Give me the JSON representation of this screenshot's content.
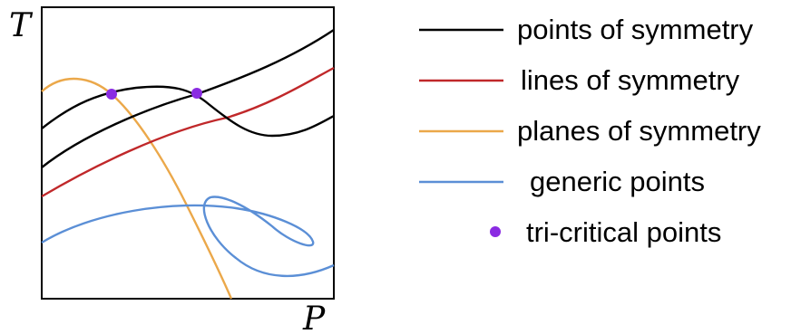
{
  "chart_data": {
    "type": "line",
    "xlabel": "P",
    "ylabel": "T",
    "grid": false,
    "legend_position": "right",
    "colors": {
      "points_of_symmetry": "#000000",
      "lines_of_symmetry": "#c0282a",
      "planes_of_symmetry": "#eba84a",
      "generic_points": "#5b8fd6",
      "tri_critical_points": "#8a2be2"
    },
    "legend": [
      {
        "key": "points_of_symmetry",
        "label": "points of symmetry",
        "marker": "line"
      },
      {
        "key": "lines_of_symmetry",
        "label": "lines of symmetry",
        "marker": "line"
      },
      {
        "key": "planes_of_symmetry",
        "label": "planes of symmetry",
        "marker": "line"
      },
      {
        "key": "generic_points",
        "label": "generic points",
        "marker": "line"
      },
      {
        "key": "tri_critical_points",
        "label": "tri-critical points",
        "marker": "dot"
      }
    ]
  }
}
